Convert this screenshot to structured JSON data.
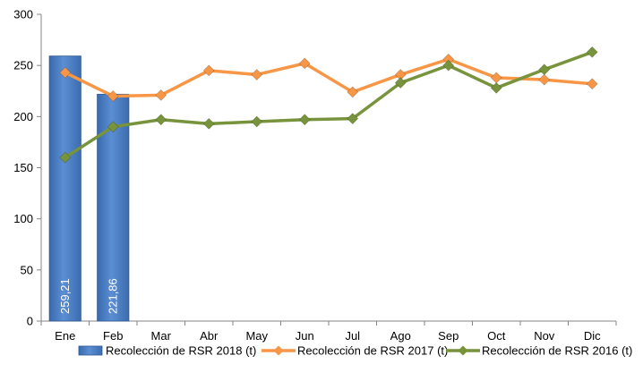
{
  "chart_data": {
    "type": "bar",
    "title": "",
    "xlabel": "",
    "ylabel": "",
    "ylim": [
      0,
      300
    ],
    "yticks": [
      0,
      50,
      100,
      150,
      200,
      250,
      300
    ],
    "yticks_labels": [
      "0",
      "50",
      "100",
      "150",
      "200",
      "250",
      "300"
    ],
    "grid": false,
    "legend_position": "bottom",
    "categories": [
      "Ene",
      "Feb",
      "Mar",
      "Abr",
      "May",
      "Jun",
      "Jul",
      "Ago",
      "Sep",
      "Oct",
      "Nov",
      "Dic"
    ],
    "series": [
      {
        "name": "Recolección de RSR 2018 (t)",
        "type": "bar",
        "color": "#4F81BD",
        "values": [
          259.21,
          221.86,
          null,
          null,
          null,
          null,
          null,
          null,
          null,
          null,
          null,
          null
        ],
        "data_labels": [
          "259,21",
          "221,86"
        ]
      },
      {
        "name": "Recolección de RSR 2017 (t)",
        "type": "line",
        "marker": "diamond",
        "color": "#F79646",
        "values": [
          243,
          220,
          221,
          245,
          241,
          252,
          224,
          241,
          256,
          238,
          236,
          232
        ]
      },
      {
        "name": "Recolección de RSR 2016 (t)",
        "type": "line",
        "marker": "diamond",
        "color": "#77933C",
        "values": [
          160,
          190,
          197,
          193,
          195,
          197,
          198,
          233,
          250,
          228,
          246,
          263
        ]
      }
    ]
  }
}
